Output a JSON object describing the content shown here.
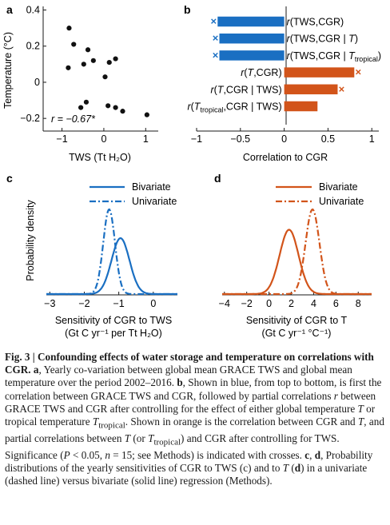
{
  "panel_labels": {
    "a": "a",
    "b": "b",
    "c": "c",
    "d": "d"
  },
  "colors": {
    "blue": "#1a6fc2",
    "orange": "#d2541a",
    "axis": "#1a1a1a"
  },
  "chart_data": [
    {
      "type": "scatter",
      "panel": "a",
      "xlabel": "TWS (Tt H₂O)",
      "ylabel": "Temperature (°C)",
      "xlim": [
        -1.45,
        1.3
      ],
      "ylim": [
        -0.27,
        0.42
      ],
      "xticks": [
        -1,
        0,
        1
      ],
      "xtick_labels": [
        "−1",
        "0",
        "1"
      ],
      "yticks": [
        0.4,
        0.2,
        0,
        -0.2
      ],
      "ytick_labels": [
        "0.4",
        "0.2",
        "0",
        "−0.2"
      ],
      "annotation": "r = −0.67*",
      "points": [
        {
          "x": -0.83,
          "y": 0.3
        },
        {
          "x": -0.72,
          "y": 0.21
        },
        {
          "x": -0.85,
          "y": 0.08
        },
        {
          "x": -0.38,
          "y": 0.18
        },
        {
          "x": -0.48,
          "y": 0.1
        },
        {
          "x": -0.25,
          "y": 0.12
        },
        {
          "x": 0.13,
          "y": 0.11
        },
        {
          "x": 0.28,
          "y": 0.13
        },
        {
          "x": 0.03,
          "y": 0.03
        },
        {
          "x": -0.55,
          "y": -0.14
        },
        {
          "x": -0.42,
          "y": -0.11
        },
        {
          "x": 0.1,
          "y": -0.13
        },
        {
          "x": 0.28,
          "y": -0.14
        },
        {
          "x": 0.45,
          "y": -0.16
        },
        {
          "x": 1.03,
          "y": -0.18
        }
      ],
      "grid": false
    },
    {
      "type": "bar",
      "panel": "b",
      "orientation": "horizontal",
      "xlabel": "Correlation to CGR",
      "xlim": [
        -1.0,
        1.08
      ],
      "xticks": [
        -1,
        -0.5,
        0,
        0.5,
        1
      ],
      "xtick_labels": [
        "−1",
        "−0.5",
        "0",
        "0.5",
        "1"
      ],
      "bars": [
        {
          "label_prefix": "r(TWS,CGR)",
          "label_mid": "",
          "label_sub": "",
          "label_suffix": "",
          "value": -0.76,
          "significant": true,
          "color": "blue"
        },
        {
          "label_prefix": "r(TWS,CGR | ",
          "label_mid": "T",
          "label_sub": "",
          "label_suffix": ")",
          "value": -0.74,
          "significant": true,
          "color": "blue"
        },
        {
          "label_prefix": "r(TWS,CGR | ",
          "label_mid": "T",
          "label_sub": "tropical",
          "label_suffix": ")",
          "value": -0.74,
          "significant": true,
          "color": "blue"
        },
        {
          "label_prefix": "r(",
          "label_mid": "T",
          "label_sub": "",
          "label_suffix": ",CGR)",
          "value": 0.8,
          "significant": true,
          "color": "orange"
        },
        {
          "label_prefix": "r(",
          "label_mid": "T",
          "label_sub": "",
          "label_suffix": ",CGR | TWS)",
          "value": 0.61,
          "significant": true,
          "color": "orange"
        },
        {
          "label_prefix": "r(",
          "label_mid": "T",
          "label_sub": "tropical",
          "label_suffix": ",CGR | TWS)",
          "value": 0.38,
          "significant": false,
          "color": "orange"
        }
      ],
      "grid": false
    },
    {
      "type": "line",
      "panel": "c",
      "xlabel": "Sensitivity of CGR to TWS",
      "xlabel_line2": "(Gt C yr⁻¹ per Tt H₂O)",
      "ylabel": "Probability density",
      "xlim": [
        -3.1,
        0.7
      ],
      "xticks": [
        -3,
        -2,
        -1,
        0
      ],
      "xtick_labels": [
        "−3",
        "−2",
        "−1",
        "0"
      ],
      "legend": [
        "Bivariate",
        "Univariate"
      ],
      "legend_position": "top",
      "series": [
        {
          "name": "Bivariate",
          "style": "solid",
          "mean": -0.95,
          "sd": 0.26,
          "peak": 0.66
        },
        {
          "name": "Univariate",
          "style": "dashdot",
          "mean": -1.28,
          "sd": 0.17,
          "peak": 1.0
        }
      ],
      "grid": false
    },
    {
      "type": "line",
      "panel": "d",
      "xlabel": "Sensitivity of CGR to T",
      "xlabel_line2": "(Gt C yr⁻¹ °C⁻¹)",
      "xlim": [
        -4.2,
        9.2
      ],
      "xticks": [
        -4,
        -2,
        0,
        2,
        4,
        6,
        8
      ],
      "xtick_labels": [
        "−4",
        "−2",
        "0",
        "2",
        "4",
        "6",
        "8"
      ],
      "legend": [
        "Bivariate",
        "Univariate"
      ],
      "legend_position": "top",
      "series": [
        {
          "name": "Bivariate",
          "style": "solid",
          "mean": 1.8,
          "sd": 0.85,
          "peak": 0.76
        },
        {
          "name": "Univariate",
          "style": "dashdot",
          "mean": 3.9,
          "sd": 0.62,
          "peak": 1.0
        }
      ],
      "grid": false
    }
  ],
  "caption": {
    "fig_label": "Fig. 3 |",
    "title": "Confounding effects of water storage and temperature on correlations with CGR.",
    "p1_label": "a",
    "p1_text": ", Yearly co-variation between global mean GRACE TWS and global mean temperature over the period 2002–2016.",
    "p2_label": "b",
    "p2_text_a": ", Shown in blue, from top to bottom, is first the correlation between GRACE TWS and CGR, followed by partial correlations ",
    "p2_r": "r",
    "p2_text_b": " between GRACE TWS and CGR after controlling for the effect of either global temperature ",
    "p2_T": "T",
    "p2_text_c": " or tropical temperature ",
    "p2_T2": "T",
    "p2_T2_sub": "tropical",
    "p2_text_d": ". Shown in orange is the correlation between CGR and ",
    "p2_T3": "T",
    "p2_text_e": ", and partial correlations between ",
    "p2_T4": "T",
    "p2_text_f": " (or ",
    "p2_T5": "T",
    "p2_T5_sub": "tropical",
    "p2_text_g": ") and CGR after controlling for TWS. Significance (",
    "p2_P": "P",
    "p2_text_h": " < 0.05, ",
    "p2_n": "n",
    "p2_text_i": " = 15; see Methods) is indicated with crosses. ",
    "p3_label_c": "c",
    "p3_text_a": ", ",
    "p3_label_d": "d",
    "p3_text_b": ", Probability distributions of the yearly sensitivities of CGR to TWS (c) and to ",
    "p3_T": "T",
    "p3_text_c": " (",
    "p3_d": "d",
    "p3_text_d": ") in a univariate (dashed line) versus bivariate (solid line) regression (Methods)."
  }
}
